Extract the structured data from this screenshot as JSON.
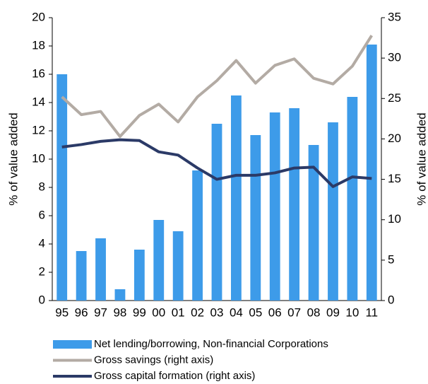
{
  "chart_data": {
    "type": "bar",
    "ylabel": "% of value added",
    "y2label": "% of value added",
    "categories": [
      "95",
      "96",
      "97",
      "98",
      "99",
      "00",
      "01",
      "02",
      "03",
      "04",
      "05",
      "06",
      "07",
      "08",
      "09",
      "10",
      "11"
    ],
    "series": [
      {
        "name": "Net lending/borrowing, Non-financial Corporations",
        "type": "bar",
        "color": "#3d9be9",
        "values": [
          16.0,
          3.5,
          4.4,
          0.8,
          3.6,
          5.7,
          4.9,
          9.2,
          12.5,
          14.5,
          11.7,
          13.3,
          13.6,
          11.0,
          12.6,
          14.4,
          18.1
        ]
      },
      {
        "name": "Gross savings (right axis)",
        "type": "line",
        "axis": "y2",
        "color": "#b3aba4",
        "values": [
          25.2,
          23.0,
          23.4,
          20.3,
          22.9,
          24.3,
          22.1,
          25.2,
          27.2,
          29.7,
          26.9,
          29.1,
          29.9,
          27.5,
          26.8,
          29.0,
          32.8
        ]
      },
      {
        "name": "Gross capital formation (right axis)",
        "type": "line",
        "axis": "y2",
        "color": "#2b3a67",
        "values": [
          19.0,
          19.3,
          19.7,
          19.9,
          19.8,
          18.4,
          18.0,
          16.4,
          15.0,
          15.5,
          15.5,
          15.8,
          16.4,
          16.5,
          14.1,
          15.3,
          15.1
        ]
      }
    ],
    "ylim": [
      0,
      20
    ],
    "yticks": [
      0,
      2,
      4,
      6,
      8,
      10,
      12,
      14,
      16,
      18,
      20
    ],
    "y2lim": [
      0,
      35
    ],
    "y2ticks": [
      0,
      5,
      10,
      15,
      20,
      25,
      30,
      35
    ],
    "legend": "bottom"
  }
}
